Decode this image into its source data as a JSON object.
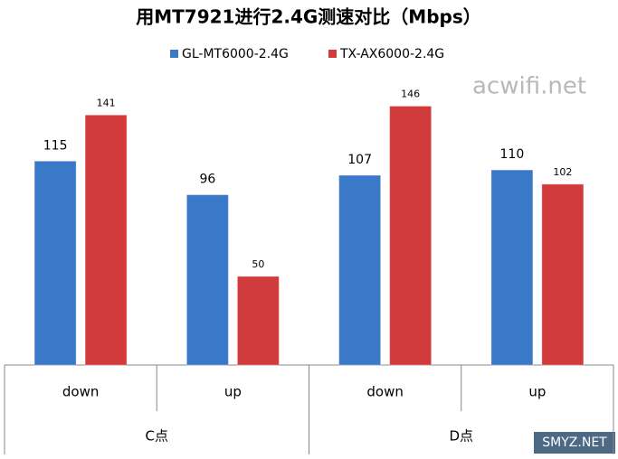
{
  "chart_data": {
    "type": "bar",
    "title": "用MT7921进行2.4G测速对比（Mbps）",
    "categories": [
      "down",
      "up",
      "down",
      "up"
    ],
    "groups": [
      {
        "label": "C点",
        "span": 2
      },
      {
        "label": "D点",
        "span": 2
      }
    ],
    "series": [
      {
        "name": "GL-MT6000-2.4G",
        "color": "#3a78c8",
        "values": [
          115,
          96,
          107,
          110
        ]
      },
      {
        "name": "TX-AX6000-2.4G",
        "color": "#d23b3b",
        "values": [
          141,
          50,
          146,
          102
        ]
      }
    ],
    "ylim": [
      0,
      160
    ],
    "legend": "top"
  },
  "watermarks": [
    "acwifi.net",
    "SMYZ.NET"
  ]
}
